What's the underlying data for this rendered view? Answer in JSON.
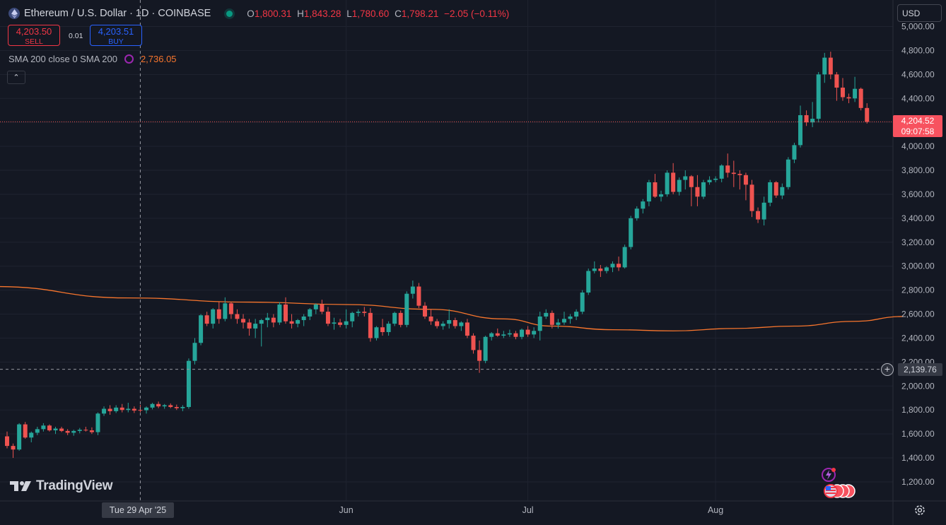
{
  "symbol": {
    "title": "Ethereum / U.S. Dollar · 1D · COINBASE",
    "ohlc": [
      {
        "k": "O",
        "v": "1,800.31"
      },
      {
        "k": "H",
        "v": "1,843.28"
      },
      {
        "k": "L",
        "v": "1,780.60"
      },
      {
        "k": "C",
        "v": "1,798.21"
      },
      {
        "k": "",
        "v": "−2.05 (−0.11%)"
      }
    ]
  },
  "trade": {
    "sell_price": "4,203.50",
    "sell_label": "SELL",
    "spread": "0.01",
    "buy_price": "4,203.51",
    "buy_label": "BUY"
  },
  "indicator": {
    "label": "SMA 200 close 0 SMA 200",
    "value": "2,736.05"
  },
  "currency": "USD",
  "last_price": {
    "price": "4,204.52",
    "countdown": "09:07:58"
  },
  "crosshair": {
    "price": "2,139.76",
    "date": "Tue 29 Apr '25"
  },
  "branding": "TradingView",
  "colors": {
    "up": "#26a69a",
    "down": "#ef5350",
    "sma": "#f7752d",
    "background": "#141823",
    "grid": "#1f2330",
    "text": "#b2b5be"
  },
  "chart_data": {
    "type": "candlestick",
    "title": "Ethereum / U.S. Dollar · 1D · COINBASE",
    "ylim": [
      1100,
      5050
    ],
    "y_ticks": [
      1200,
      1400,
      1600,
      1800,
      2000,
      2200,
      2400,
      2600,
      2800,
      3000,
      3200,
      3400,
      3600,
      3800,
      4000,
      4200,
      4400,
      4600,
      4800,
      5000
    ],
    "y_tick_labels": [
      "1,200.00",
      "1,400.00",
      "1,600.00",
      "1,800.00",
      "2,000.00",
      "2,200.00",
      "2,400.00",
      "2,600.00",
      "2,800.00",
      "3,000.00",
      "3,200.00",
      "3,400.00",
      "3,600.00",
      "3,800.00",
      "4,000.00",
      "4,200.00",
      "4,400.00",
      "4,600.00",
      "4,800.00",
      "5,000.00"
    ],
    "x_ticks": [
      {
        "label": "Jun",
        "index": 56
      },
      {
        "label": "Jul",
        "index": 86
      },
      {
        "label": "Aug",
        "index": 117
      }
    ],
    "crosshair_index": 22,
    "crosshair_value": 2139.76,
    "last_price_value": 4204.52,
    "candles": [
      [
        1580,
        1620,
        1480,
        1500
      ],
      [
        1500,
        1520,
        1400,
        1470
      ],
      [
        1470,
        1690,
        1460,
        1680
      ],
      [
        1680,
        1700,
        1560,
        1570
      ],
      [
        1570,
        1620,
        1530,
        1610
      ],
      [
        1610,
        1660,
        1590,
        1640
      ],
      [
        1640,
        1690,
        1620,
        1670
      ],
      [
        1670,
        1680,
        1620,
        1630
      ],
      [
        1630,
        1660,
        1600,
        1645
      ],
      [
        1645,
        1660,
        1615,
        1625
      ],
      [
        1625,
        1640,
        1590,
        1610
      ],
      [
        1610,
        1635,
        1585,
        1625
      ],
      [
        1625,
        1650,
        1605,
        1635
      ],
      [
        1635,
        1660,
        1620,
        1630
      ],
      [
        1630,
        1655,
        1600,
        1615
      ],
      [
        1615,
        1780,
        1590,
        1770
      ],
      [
        1770,
        1830,
        1750,
        1810
      ],
      [
        1810,
        1840,
        1760,
        1790
      ],
      [
        1790,
        1840,
        1775,
        1820
      ],
      [
        1820,
        1850,
        1780,
        1800
      ],
      [
        1800,
        1860,
        1780,
        1810
      ],
      [
        1810,
        1830,
        1775,
        1795
      ],
      [
        1800.31,
        1843.28,
        1780.6,
        1798.21
      ],
      [
        1798,
        1830,
        1770,
        1820
      ],
      [
        1820,
        1860,
        1805,
        1850
      ],
      [
        1850,
        1870,
        1815,
        1830
      ],
      [
        1830,
        1850,
        1810,
        1840
      ],
      [
        1840,
        1855,
        1815,
        1825
      ],
      [
        1825,
        1845,
        1800,
        1815
      ],
      [
        1815,
        1840,
        1790,
        1825
      ],
      [
        1825,
        2230,
        1810,
        2210
      ],
      [
        2210,
        2400,
        2180,
        2360
      ],
      [
        2360,
        2600,
        2340,
        2590
      ],
      [
        2590,
        2620,
        2500,
        2520
      ],
      [
        2520,
        2650,
        2480,
        2640
      ],
      [
        2640,
        2700,
        2520,
        2560
      ],
      [
        2560,
        2740,
        2540,
        2690
      ],
      [
        2690,
        2700,
        2560,
        2600
      ],
      [
        2600,
        2640,
        2520,
        2560
      ],
      [
        2560,
        2600,
        2480,
        2530
      ],
      [
        2530,
        2560,
        2420,
        2480
      ],
      [
        2480,
        2560,
        2400,
        2520
      ],
      [
        2520,
        2560,
        2330,
        2550
      ],
      [
        2550,
        2610,
        2490,
        2570
      ],
      [
        2570,
        2600,
        2490,
        2530
      ],
      [
        2530,
        2700,
        2510,
        2680
      ],
      [
        2680,
        2740,
        2520,
        2540
      ],
      [
        2540,
        2600,
        2480,
        2520
      ],
      [
        2520,
        2560,
        2490,
        2550
      ],
      [
        2550,
        2600,
        2500,
        2580
      ],
      [
        2580,
        2650,
        2550,
        2640
      ],
      [
        2640,
        2690,
        2600,
        2680
      ],
      [
        2680,
        2720,
        2600,
        2620
      ],
      [
        2620,
        2660,
        2500,
        2520
      ],
      [
        2520,
        2570,
        2470,
        2530
      ],
      [
        2530,
        2560,
        2490,
        2510
      ],
      [
        2510,
        2640,
        2480,
        2540
      ],
      [
        2540,
        2620,
        2490,
        2610
      ],
      [
        2610,
        2640,
        2580,
        2620
      ],
      [
        2620,
        2660,
        2580,
        2610
      ],
      [
        2610,
        2650,
        2370,
        2400
      ],
      [
        2400,
        2500,
        2380,
        2490
      ],
      [
        2490,
        2560,
        2420,
        2450
      ],
      [
        2450,
        2540,
        2420,
        2520
      ],
      [
        2520,
        2620,
        2500,
        2610
      ],
      [
        2610,
        2630,
        2490,
        2510
      ],
      [
        2510,
        2790,
        2490,
        2770
      ],
      [
        2770,
        2880,
        2730,
        2830
      ],
      [
        2830,
        2860,
        2650,
        2670
      ],
      [
        2670,
        2700,
        2560,
        2580
      ],
      [
        2580,
        2640,
        2510,
        2540
      ],
      [
        2540,
        2560,
        2480,
        2500
      ],
      [
        2500,
        2540,
        2470,
        2520
      ],
      [
        2520,
        2640,
        2480,
        2550
      ],
      [
        2550,
        2570,
        2480,
        2500
      ],
      [
        2500,
        2540,
        2460,
        2530
      ],
      [
        2530,
        2560,
        2400,
        2420
      ],
      [
        2420,
        2440,
        2270,
        2300
      ],
      [
        2300,
        2380,
        2110,
        2210
      ],
      [
        2210,
        2420,
        2190,
        2410
      ],
      [
        2410,
        2450,
        2380,
        2440
      ],
      [
        2440,
        2480,
        2410,
        2420
      ],
      [
        2420,
        2460,
        2400,
        2430
      ],
      [
        2430,
        2470,
        2410,
        2440
      ],
      [
        2440,
        2460,
        2390,
        2410
      ],
      [
        2410,
        2480,
        2390,
        2470
      ],
      [
        2470,
        2500,
        2410,
        2430
      ],
      [
        2430,
        2490,
        2400,
        2460
      ],
      [
        2460,
        2620,
        2380,
        2580
      ],
      [
        2580,
        2640,
        2560,
        2610
      ],
      [
        2610,
        2630,
        2480,
        2510
      ],
      [
        2510,
        2560,
        2480,
        2530
      ],
      [
        2530,
        2620,
        2510,
        2560
      ],
      [
        2560,
        2600,
        2520,
        2580
      ],
      [
        2580,
        2640,
        2550,
        2620
      ],
      [
        2620,
        2800,
        2600,
        2780
      ],
      [
        2780,
        2980,
        2760,
        2960
      ],
      [
        2960,
        3040,
        2940,
        2980
      ],
      [
        2980,
        3010,
        2910,
        2960
      ],
      [
        2960,
        3000,
        2940,
        2990
      ],
      [
        2990,
        3040,
        2950,
        3020
      ],
      [
        3020,
        3080,
        2960,
        2990
      ],
      [
        2990,
        3180,
        2980,
        3160
      ],
      [
        3160,
        3420,
        3140,
        3400
      ],
      [
        3400,
        3500,
        3380,
        3480
      ],
      [
        3480,
        3560,
        3440,
        3540
      ],
      [
        3540,
        3720,
        3500,
        3700
      ],
      [
        3700,
        3770,
        3570,
        3580
      ],
      [
        3580,
        3630,
        3540,
        3600
      ],
      [
        3600,
        3800,
        3580,
        3780
      ],
      [
        3780,
        3860,
        3600,
        3620
      ],
      [
        3620,
        3740,
        3590,
        3720
      ],
      [
        3720,
        3800,
        3640,
        3750
      ],
      [
        3750,
        3760,
        3500,
        3660
      ],
      [
        3660,
        3760,
        3500,
        3580
      ],
      [
        3580,
        3720,
        3560,
        3700
      ],
      [
        3700,
        3750,
        3680,
        3720
      ],
      [
        3720,
        3750,
        3700,
        3730
      ],
      [
        3730,
        3850,
        3700,
        3840
      ],
      [
        3840,
        3940,
        3740,
        3780
      ],
      [
        3780,
        3880,
        3660,
        3770
      ],
      [
        3770,
        3800,
        3640,
        3760
      ],
      [
        3760,
        3780,
        3550,
        3680
      ],
      [
        3680,
        3720,
        3410,
        3460
      ],
      [
        3460,
        3490,
        3360,
        3390
      ],
      [
        3390,
        3580,
        3340,
        3530
      ],
      [
        3530,
        3720,
        3500,
        3700
      ],
      [
        3700,
        3710,
        3570,
        3590
      ],
      [
        3590,
        3690,
        3560,
        3660
      ],
      [
        3660,
        3910,
        3640,
        3890
      ],
      [
        3890,
        4030,
        3860,
        4010
      ],
      [
        4010,
        4340,
        3990,
        4260
      ],
      [
        4260,
        4300,
        4170,
        4200
      ],
      [
        4200,
        4370,
        4160,
        4230
      ],
      [
        4230,
        4620,
        4200,
        4600
      ],
      [
        4600,
        4780,
        4530,
        4740
      ],
      [
        4740,
        4790,
        4560,
        4600
      ],
      [
        4600,
        4620,
        4380,
        4490
      ],
      [
        4490,
        4570,
        4380,
        4410
      ],
      [
        4410,
        4440,
        4360,
        4400
      ],
      [
        4400,
        4580,
        4370,
        4480
      ],
      [
        4480,
        4490,
        4300,
        4320
      ],
      [
        4320,
        4360,
        4190,
        4204.52
      ]
    ],
    "sma": {
      "name": "SMA 200",
      "start_index": -2,
      "points": [
        [
          -2,
          2830
        ],
        [
          20,
          2735
        ],
        [
          40,
          2700
        ],
        [
          56,
          2680
        ],
        [
          70,
          2640
        ],
        [
          82,
          2560
        ],
        [
          90,
          2500
        ],
        [
          100,
          2470
        ],
        [
          110,
          2460
        ],
        [
          120,
          2480
        ],
        [
          130,
          2500
        ],
        [
          140,
          2540
        ],
        [
          148,
          2580
        ]
      ]
    }
  }
}
